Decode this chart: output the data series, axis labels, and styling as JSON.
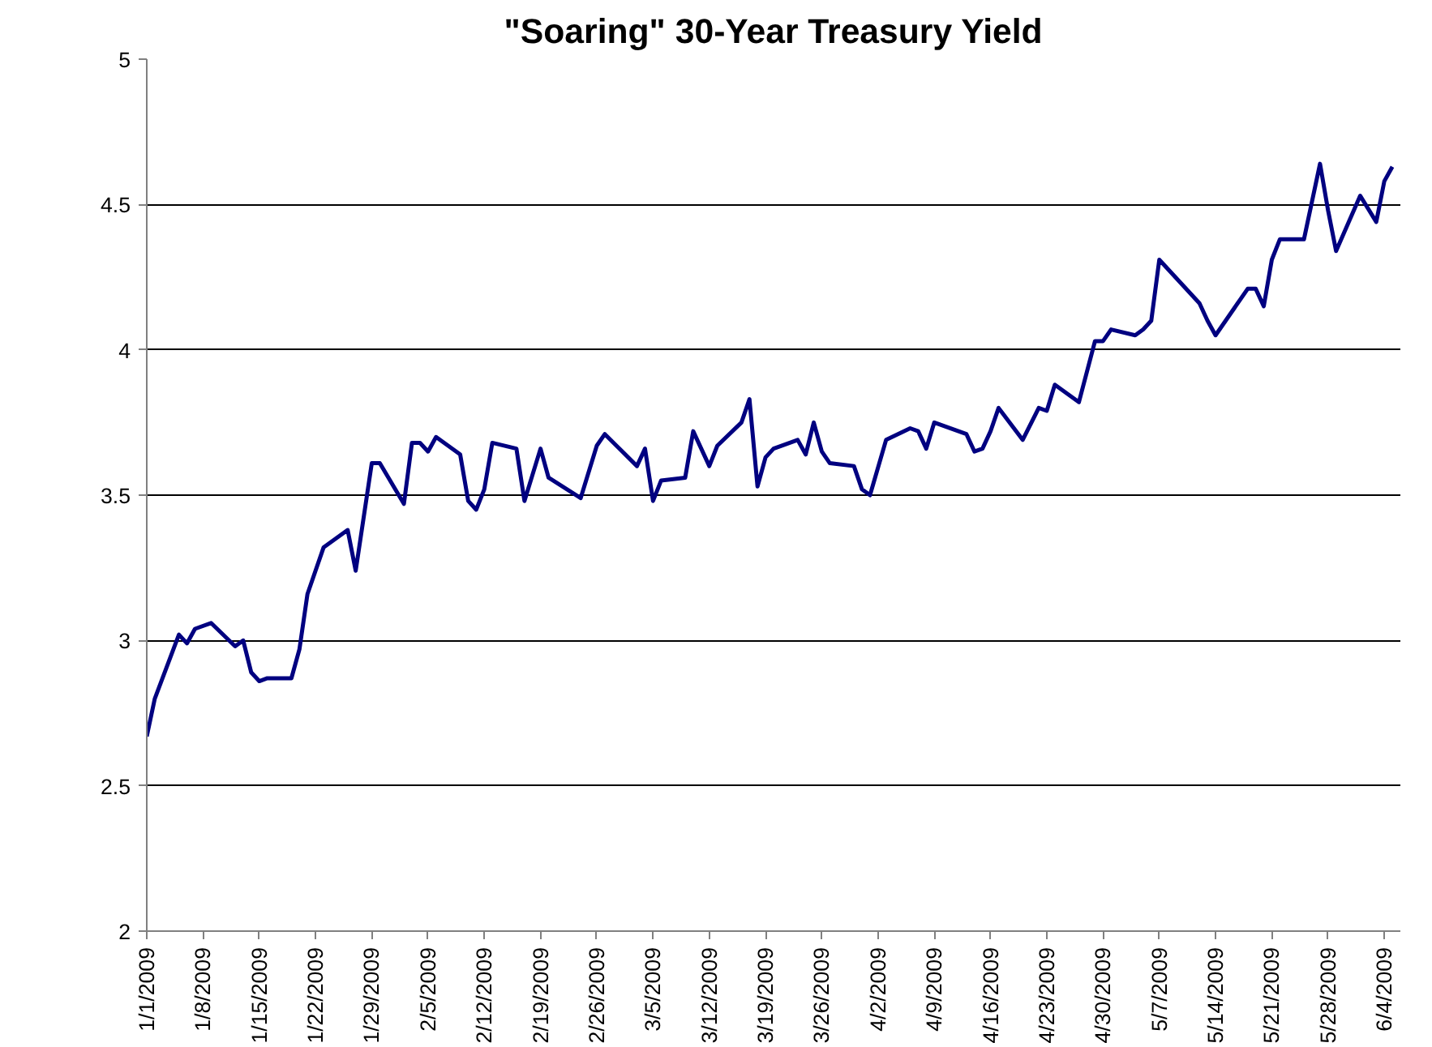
{
  "chart_data": {
    "type": "line",
    "title": "\"Soaring\" 30-Year Treasury Yield",
    "x": [
      "2009-01-01",
      "2009-01-02",
      "2009-01-05",
      "2009-01-06",
      "2009-01-07",
      "2009-01-09",
      "2009-01-12",
      "2009-01-13",
      "2009-01-14",
      "2009-01-15",
      "2009-01-16",
      "2009-01-19",
      "2009-01-20",
      "2009-01-21",
      "2009-01-23",
      "2009-01-26",
      "2009-01-27",
      "2009-01-29",
      "2009-01-30",
      "2009-02-02",
      "2009-02-03",
      "2009-02-04",
      "2009-02-05",
      "2009-02-06",
      "2009-02-09",
      "2009-02-10",
      "2009-02-11",
      "2009-02-12",
      "2009-02-13",
      "2009-02-16",
      "2009-02-17",
      "2009-02-19",
      "2009-02-20",
      "2009-02-24",
      "2009-02-26",
      "2009-02-27",
      "2009-03-03",
      "2009-03-04",
      "2009-03-05",
      "2009-03-06",
      "2009-03-09",
      "2009-03-10",
      "2009-03-12",
      "2009-03-13",
      "2009-03-16",
      "2009-03-17",
      "2009-03-18",
      "2009-03-19",
      "2009-03-20",
      "2009-03-23",
      "2009-03-24",
      "2009-03-25",
      "2009-03-26",
      "2009-03-27",
      "2009-03-30",
      "2009-03-31",
      "2009-04-01",
      "2009-04-03",
      "2009-04-06",
      "2009-04-07",
      "2009-04-08",
      "2009-04-09",
      "2009-04-13",
      "2009-04-14",
      "2009-04-15",
      "2009-04-16",
      "2009-04-17",
      "2009-04-20",
      "2009-04-22",
      "2009-04-23",
      "2009-04-24",
      "2009-04-27",
      "2009-04-29",
      "2009-04-30",
      "2009-05-01",
      "2009-05-04",
      "2009-05-05",
      "2009-05-06",
      "2009-05-07",
      "2009-05-11",
      "2009-05-12",
      "2009-05-13",
      "2009-05-14",
      "2009-05-18",
      "2009-05-19",
      "2009-05-20",
      "2009-05-21",
      "2009-05-22",
      "2009-05-25",
      "2009-05-27",
      "2009-05-28",
      "2009-05-29",
      "2009-06-01",
      "2009-06-03",
      "2009-06-04",
      "2009-06-05"
    ],
    "series": [
      {
        "color": "#000080",
        "values": [
          2.67,
          2.8,
          3.02,
          2.99,
          3.04,
          3.06,
          2.98,
          3.0,
          2.89,
          2.86,
          2.87,
          2.87,
          2.97,
          3.16,
          3.32,
          3.38,
          3.24,
          3.61,
          3.61,
          3.47,
          3.68,
          3.68,
          3.65,
          3.7,
          3.64,
          3.48,
          3.45,
          3.52,
          3.68,
          3.66,
          3.48,
          3.66,
          3.56,
          3.49,
          3.67,
          3.71,
          3.6,
          3.66,
          3.48,
          3.55,
          3.56,
          3.72,
          3.6,
          3.67,
          3.75,
          3.83,
          3.53,
          3.63,
          3.66,
          3.69,
          3.64,
          3.75,
          3.65,
          3.61,
          3.6,
          3.52,
          3.5,
          3.69,
          3.73,
          3.72,
          3.66,
          3.75,
          3.71,
          3.65,
          3.66,
          3.72,
          3.8,
          3.69,
          3.8,
          3.79,
          3.88,
          3.82,
          4.03,
          4.03,
          4.07,
          4.05,
          4.07,
          4.1,
          4.31,
          4.19,
          4.16,
          4.1,
          4.05,
          4.21,
          4.21,
          4.15,
          4.31,
          4.38,
          4.38,
          4.64,
          4.48,
          4.34,
          4.53,
          4.44,
          4.58,
          4.63
        ]
      }
    ],
    "xlim": [
      "2009-01-01",
      "2009-06-06"
    ],
    "xticks": [
      {
        "value": "2009-01-01",
        "label": "1/1/2009"
      },
      {
        "value": "2009-01-08",
        "label": "1/8/2009"
      },
      {
        "value": "2009-01-15",
        "label": "1/15/2009"
      },
      {
        "value": "2009-01-22",
        "label": "1/22/2009"
      },
      {
        "value": "2009-01-29",
        "label": "1/29/2009"
      },
      {
        "value": "2009-02-05",
        "label": "2/5/2009"
      },
      {
        "value": "2009-02-12",
        "label": "2/12/2009"
      },
      {
        "value": "2009-02-19",
        "label": "2/19/2009"
      },
      {
        "value": "2009-02-26",
        "label": "2/26/2009"
      },
      {
        "value": "2009-03-05",
        "label": "3/5/2009"
      },
      {
        "value": "2009-03-12",
        "label": "3/12/2009"
      },
      {
        "value": "2009-03-19",
        "label": "3/19/2009"
      },
      {
        "value": "2009-03-26",
        "label": "3/26/2009"
      },
      {
        "value": "2009-04-02",
        "label": "4/2/2009"
      },
      {
        "value": "2009-04-09",
        "label": "4/9/2009"
      },
      {
        "value": "2009-04-16",
        "label": "4/16/2009"
      },
      {
        "value": "2009-04-23",
        "label": "4/23/2009"
      },
      {
        "value": "2009-04-30",
        "label": "4/30/2009"
      },
      {
        "value": "2009-05-07",
        "label": "5/7/2009"
      },
      {
        "value": "2009-05-14",
        "label": "5/14/2009"
      },
      {
        "value": "2009-05-21",
        "label": "5/21/2009"
      },
      {
        "value": "2009-05-28",
        "label": "5/28/2009"
      },
      {
        "value": "2009-06-04",
        "label": "6/4/2009"
      }
    ],
    "ylim": [
      2,
      5
    ],
    "yticks": [
      2,
      2.5,
      3,
      3.5,
      4,
      4.5,
      5
    ],
    "grid": "y",
    "marker": "none",
    "line_style": "solid"
  }
}
